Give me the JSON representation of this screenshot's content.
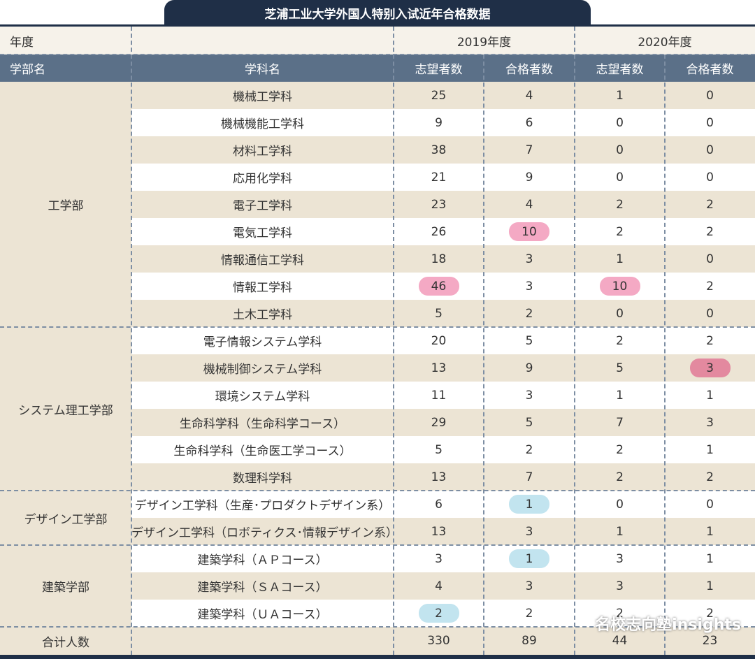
{
  "title": "芝浦工业大学外国人特别入试近年合格数据",
  "header": {
    "year_label": "年度",
    "faculty_label": "学部名",
    "dept_label": "学科名",
    "years": [
      "2019年度",
      "2020年度"
    ],
    "columns": [
      "志望者数",
      "合格者数",
      "志望者数",
      "合格者数"
    ]
  },
  "faculties": [
    {
      "name": "工学部",
      "rows": [
        {
          "dept": "機械工学科",
          "values": [
            25,
            4,
            1,
            0
          ]
        },
        {
          "dept": "機械機能工学科",
          "values": [
            9,
            6,
            0,
            0
          ]
        },
        {
          "dept": "材料工学科",
          "values": [
            38,
            7,
            0,
            0
          ]
        },
        {
          "dept": "応用化学科",
          "values": [
            21,
            9,
            0,
            0
          ]
        },
        {
          "dept": "電子工学科",
          "values": [
            23,
            4,
            2,
            2
          ]
        },
        {
          "dept": "電気工学科",
          "values": [
            26,
            10,
            2,
            2
          ]
        },
        {
          "dept": "情報通信工学科",
          "values": [
            18,
            3,
            1,
            0
          ]
        },
        {
          "dept": "情報工学科",
          "values": [
            46,
            3,
            10,
            2
          ]
        },
        {
          "dept": "土木工学科",
          "values": [
            5,
            2,
            0,
            0
          ]
        }
      ]
    },
    {
      "name": "システム理工学部",
      "rows": [
        {
          "dept": "電子情報システム学科",
          "values": [
            20,
            5,
            2,
            2
          ]
        },
        {
          "dept": "機械制御システム学科",
          "values": [
            13,
            9,
            5,
            3
          ]
        },
        {
          "dept": "環境システム学科",
          "values": [
            11,
            3,
            1,
            1
          ]
        },
        {
          "dept": "生命科学科（生命科学コース）",
          "values": [
            29,
            5,
            7,
            3
          ]
        },
        {
          "dept": "生命科学科（生命医工学コース）",
          "values": [
            5,
            2,
            2,
            1
          ]
        },
        {
          "dept": "数理科学科",
          "values": [
            13,
            7,
            2,
            2
          ]
        }
      ]
    },
    {
      "name": "デザイン工学部",
      "rows": [
        {
          "dept": "デザイン工学科（生産･プロダクトデザイン系）",
          "values": [
            6,
            1,
            0,
            0
          ]
        },
        {
          "dept": "デザイン工学科（ロボティクス･情報デザイン系）",
          "values": [
            13,
            3,
            1,
            1
          ]
        }
      ]
    },
    {
      "name": "建築学部",
      "rows": [
        {
          "dept": "建築学科（ＡＰコース）",
          "values": [
            3,
            1,
            3,
            1
          ]
        },
        {
          "dept": "建築学科（ＳＡコース）",
          "values": [
            4,
            3,
            3,
            1
          ]
        },
        {
          "dept": "建築学科（ＵＡコース）",
          "values": [
            2,
            2,
            2,
            2
          ]
        }
      ]
    }
  ],
  "total": {
    "label": "合计人数",
    "values": [
      330,
      89,
      44,
      23
    ]
  },
  "highlights": [
    {
      "faculty": 0,
      "row": 5,
      "col": 1,
      "color": "#f4a9c4"
    },
    {
      "faculty": 0,
      "row": 7,
      "col": 0,
      "color": "#f4a9c4"
    },
    {
      "faculty": 0,
      "row": 7,
      "col": 2,
      "color": "#f4a9c4"
    },
    {
      "faculty": 1,
      "row": 1,
      "col": 3,
      "color": "#e3899f"
    },
    {
      "faculty": 2,
      "row": 0,
      "col": 1,
      "color": "#c2e4ef"
    },
    {
      "faculty": 3,
      "row": 0,
      "col": 1,
      "color": "#c2e4ef"
    },
    {
      "faculty": 3,
      "row": 2,
      "col": 0,
      "color": "#c2e4ef"
    }
  ],
  "watermark": "名校志向塾insights"
}
